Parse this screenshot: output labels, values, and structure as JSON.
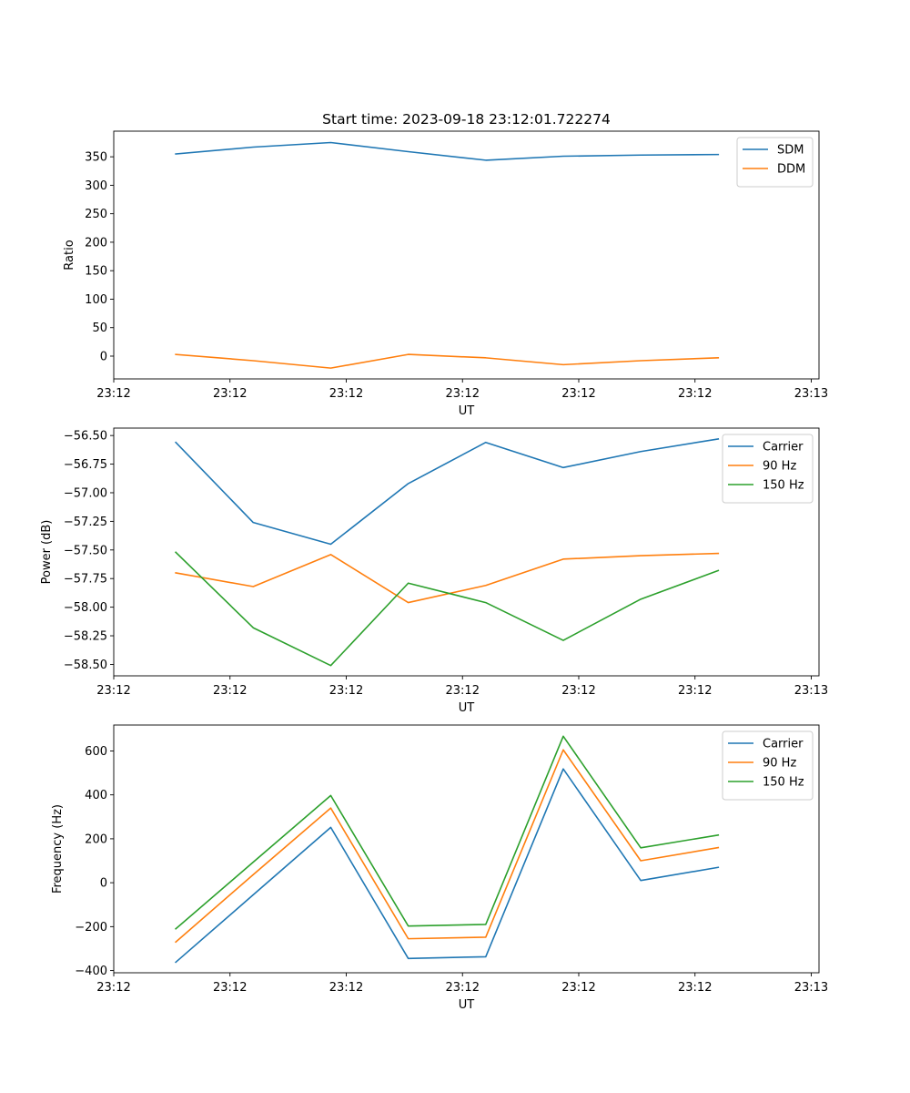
{
  "chart_data": [
    {
      "type": "line",
      "title": "Start time: 2023-09-18 23:12:01.722274",
      "xlabel": "UT",
      "ylabel": "Ratio",
      "x": [
        1,
        2,
        3,
        4,
        5,
        6,
        7,
        8
      ],
      "xlim": [
        0.2,
        9.3
      ],
      "xticks": [
        0.2,
        1.7,
        3.2,
        4.7,
        6.2,
        7.7,
        9.2
      ],
      "xtick_labels": [
        "23:12",
        "23:12",
        "23:12",
        "23:12",
        "23:12",
        "23:12",
        "23:13"
      ],
      "ylim": [
        -40,
        395
      ],
      "yticks": [
        0,
        50,
        100,
        150,
        200,
        250,
        300,
        350
      ],
      "ytick_labels": [
        "0",
        "50",
        "100",
        "150",
        "200",
        "250",
        "300",
        "350"
      ],
      "legend_position": "top-right",
      "series": [
        {
          "name": "SDM",
          "color": "#1f77b4",
          "values": [
            355,
            367,
            375,
            359,
            344,
            351,
            353,
            354
          ]
        },
        {
          "name": "DDM",
          "color": "#ff7f0e",
          "values": [
            3,
            -8,
            -21,
            3,
            -3,
            -15,
            -8,
            -3
          ]
        }
      ]
    },
    {
      "type": "line",
      "xlabel": "UT",
      "ylabel": "Power (dB)",
      "x": [
        1,
        2,
        3,
        4,
        5,
        6,
        7,
        8
      ],
      "xlim": [
        0.2,
        9.3
      ],
      "xticks": [
        0.2,
        1.7,
        3.2,
        4.7,
        6.2,
        7.7,
        9.2
      ],
      "xtick_labels": [
        "23:12",
        "23:12",
        "23:12",
        "23:12",
        "23:12",
        "23:12",
        "23:13"
      ],
      "ylim": [
        -58.6,
        -56.435
      ],
      "yticks": [
        -56.5,
        -56.75,
        -57.0,
        -57.25,
        -57.5,
        -57.75,
        -58.0,
        -58.25,
        -58.5
      ],
      "ytick_labels": [
        "−56.50",
        "−56.75",
        "−57.00",
        "−57.25",
        "−57.50",
        "−57.75",
        "−58.00",
        "−58.25",
        "−58.50"
      ],
      "legend_position": "top-right",
      "series": [
        {
          "name": "Carrier",
          "color": "#1f77b4",
          "values": [
            -56.56,
            -57.26,
            -57.45,
            -56.92,
            -56.56,
            -56.78,
            -56.64,
            -56.53
          ]
        },
        {
          "name": "90 Hz",
          "color": "#ff7f0e",
          "values": [
            -57.7,
            -57.82,
            -57.54,
            -57.96,
            -57.81,
            -57.58,
            -57.55,
            -57.53
          ]
        },
        {
          "name": "150 Hz",
          "color": "#2ca02c",
          "values": [
            -57.52,
            -58.18,
            -58.51,
            -57.79,
            -57.96,
            -58.29,
            -57.93,
            -57.68
          ]
        }
      ]
    },
    {
      "type": "line",
      "xlabel": "UT",
      "ylabel": "Frequency (Hz)",
      "x": [
        1,
        2,
        3,
        4,
        5,
        6,
        7,
        8
      ],
      "xlim": [
        0.2,
        9.3
      ],
      "xticks": [
        0.2,
        1.7,
        3.2,
        4.7,
        6.2,
        7.7,
        9.2
      ],
      "xtick_labels": [
        "23:12",
        "23:12",
        "23:12",
        "23:12",
        "23:12",
        "23:12",
        "23:13"
      ],
      "ylim": [
        -410,
        718
      ],
      "yticks": [
        -400,
        -200,
        0,
        200,
        400,
        600
      ],
      "ytick_labels": [
        "−400",
        "−200",
        "0",
        "200",
        "400",
        "600"
      ],
      "legend_position": "top-right",
      "series": [
        {
          "name": "Carrier",
          "color": "#1f77b4",
          "values": [
            -362,
            -55,
            252,
            -345,
            -337,
            518,
            10,
            70
          ]
        },
        {
          "name": "90 Hz",
          "color": "#ff7f0e",
          "values": [
            -270,
            37,
            340,
            -255,
            -248,
            605,
            100,
            160
          ]
        },
        {
          "name": "150 Hz",
          "color": "#2ca02c",
          "values": [
            -210,
            94,
            397,
            -197,
            -190,
            667,
            159,
            217
          ]
        }
      ]
    }
  ]
}
